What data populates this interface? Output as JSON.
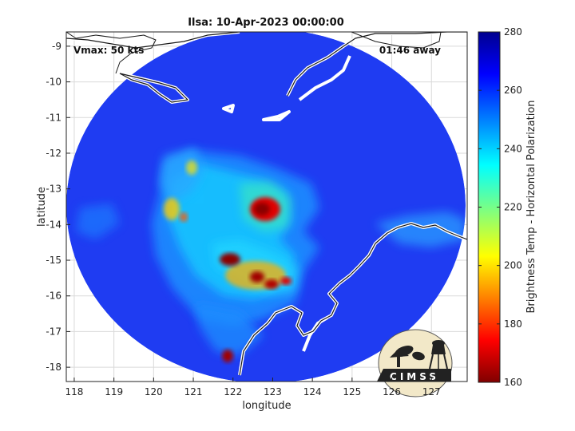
{
  "chart_data": {
    "type": "heatmap",
    "title": "Ilsa: 10-Apr-2023 00:00:00",
    "xlabel": "longitude",
    "ylabel": "latitude",
    "xlim": [
      117.8,
      127.9
    ],
    "ylim": [
      -18.4,
      -8.6
    ],
    "x_ticks": [
      118,
      119,
      120,
      121,
      122,
      123,
      124,
      125,
      126,
      127
    ],
    "y_ticks": [
      -9,
      -10,
      -11,
      -12,
      -13,
      -14,
      -15,
      -16,
      -17,
      -18
    ],
    "x_tick_labels": [
      "118",
      "119",
      "120",
      "121",
      "122",
      "123",
      "124",
      "125",
      "126",
      "127"
    ],
    "y_tick_labels": [
      "-9",
      "-10",
      "-11",
      "-12",
      "-13",
      "-14",
      "-15",
      "-16",
      "-17",
      "-18"
    ],
    "grid": true,
    "annotations": {
      "vmax": "Vmax: 50 kts",
      "time_away": "01:46 away"
    },
    "swath_center": [
      122.75,
      -13.4
    ],
    "colorbar": {
      "label": "Brightness Temp - Horizontal Polarization",
      "range": [
        160,
        280
      ],
      "ticks": [
        160,
        180,
        200,
        220,
        240,
        260,
        280
      ],
      "tick_labels": [
        "160",
        "180",
        "200",
        "220",
        "240",
        "260",
        "280"
      ],
      "colormap": "jet"
    },
    "background_temp": 268,
    "cold_regions": [
      {
        "lon": 122.75,
        "lat": -13.4,
        "min_temp": 170
      },
      {
        "lon": 122.1,
        "lat": -14.9,
        "min_temp": 172
      },
      {
        "lon": 122.7,
        "lat": -15.6,
        "min_temp": 175
      },
      {
        "lon": 123.0,
        "lat": -15.7,
        "min_temp": 178
      },
      {
        "lon": 121.85,
        "lat": -17.6,
        "min_temp": 178
      },
      {
        "lon": 120.4,
        "lat": -13.6,
        "min_temp": 200
      },
      {
        "lon": 120.9,
        "lat": -12.2,
        "min_temp": 215
      }
    ],
    "logo_text": "CIMSS"
  }
}
